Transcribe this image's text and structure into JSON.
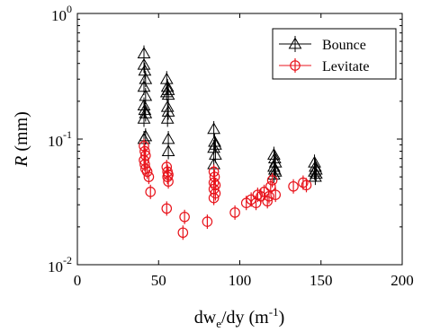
{
  "chart_data": {
    "type": "scatter",
    "xlabel": {
      "pre": "dw",
      "sub": "e",
      "post": "/dy (m",
      "sup": "-1",
      "close": ")"
    },
    "ylabel": {
      "italic": "R",
      "rest": " (mm)"
    },
    "xlim": [
      0,
      200
    ],
    "ylim": [
      0.01,
      1
    ],
    "yscale": "log",
    "grid": false,
    "legend_position": "top-right",
    "x_ticks": [
      0,
      50,
      100,
      150,
      200
    ],
    "y_ticks": [
      {
        "value": 1,
        "base": "10",
        "exp": "0"
      },
      {
        "value": 0.1,
        "base": "10",
        "exp": "-1"
      },
      {
        "value": 0.01,
        "base": "10",
        "exp": "-2"
      }
    ],
    "series": [
      {
        "name": "Bounce",
        "color": "#000000",
        "marker": "triangle",
        "points": [
          [
            41,
            0.48
          ],
          [
            41,
            0.39
          ],
          [
            41.5,
            0.35
          ],
          [
            42,
            0.3
          ],
          [
            41,
            0.26
          ],
          [
            42,
            0.22
          ],
          [
            41,
            0.185
          ],
          [
            41.5,
            0.17
          ],
          [
            42,
            0.16
          ],
          [
            41,
            0.145
          ],
          [
            42,
            0.105
          ],
          [
            41,
            0.1
          ],
          [
            55,
            0.3
          ],
          [
            55.5,
            0.26
          ],
          [
            56,
            0.245
          ],
          [
            55,
            0.235
          ],
          [
            56,
            0.225
          ],
          [
            55.5,
            0.18
          ],
          [
            56,
            0.165
          ],
          [
            55.5,
            0.145
          ],
          [
            56,
            0.1
          ],
          [
            56,
            0.08
          ],
          [
            84,
            0.12
          ],
          [
            84.5,
            0.095
          ],
          [
            85,
            0.09
          ],
          [
            84,
            0.085
          ],
          [
            85,
            0.075
          ],
          [
            84,
            0.063
          ],
          [
            121,
            0.075
          ],
          [
            121.5,
            0.07
          ],
          [
            122,
            0.065
          ],
          [
            121,
            0.06
          ],
          [
            121.5,
            0.057
          ],
          [
            122,
            0.055
          ],
          [
            121,
            0.052
          ],
          [
            146,
            0.065
          ],
          [
            146.5,
            0.06
          ],
          [
            147,
            0.057
          ],
          [
            146,
            0.055
          ],
          [
            147,
            0.053
          ],
          [
            146.5,
            0.05
          ]
        ]
      },
      {
        "name": "Levitate",
        "color": "#e8141c",
        "marker": "circle-cross",
        "points": [
          [
            41,
            0.088
          ],
          [
            41.5,
            0.08
          ],
          [
            42,
            0.074
          ],
          [
            41,
            0.068
          ],
          [
            41.5,
            0.063
          ],
          [
            42,
            0.058
          ],
          [
            43,
            0.055
          ],
          [
            44,
            0.05
          ],
          [
            45,
            0.038
          ],
          [
            55,
            0.06
          ],
          [
            55.5,
            0.055
          ],
          [
            56,
            0.052
          ],
          [
            55.5,
            0.05
          ],
          [
            56,
            0.046
          ],
          [
            55,
            0.028
          ],
          [
            66,
            0.024
          ],
          [
            65,
            0.018
          ],
          [
            80,
            0.022
          ],
          [
            84,
            0.055
          ],
          [
            84.5,
            0.05
          ],
          [
            84,
            0.045
          ],
          [
            85,
            0.043
          ],
          [
            84,
            0.04
          ],
          [
            85,
            0.037
          ],
          [
            84,
            0.034
          ],
          [
            97,
            0.026
          ],
          [
            104,
            0.031
          ],
          [
            107,
            0.033
          ],
          [
            110,
            0.031
          ],
          [
            111,
            0.036
          ],
          [
            113,
            0.035
          ],
          [
            115,
            0.038
          ],
          [
            117,
            0.032
          ],
          [
            118,
            0.035
          ],
          [
            119,
            0.042
          ],
          [
            120,
            0.047
          ],
          [
            122,
            0.036
          ],
          [
            133,
            0.042
          ],
          [
            139,
            0.045
          ],
          [
            141,
            0.043
          ]
        ]
      }
    ]
  }
}
